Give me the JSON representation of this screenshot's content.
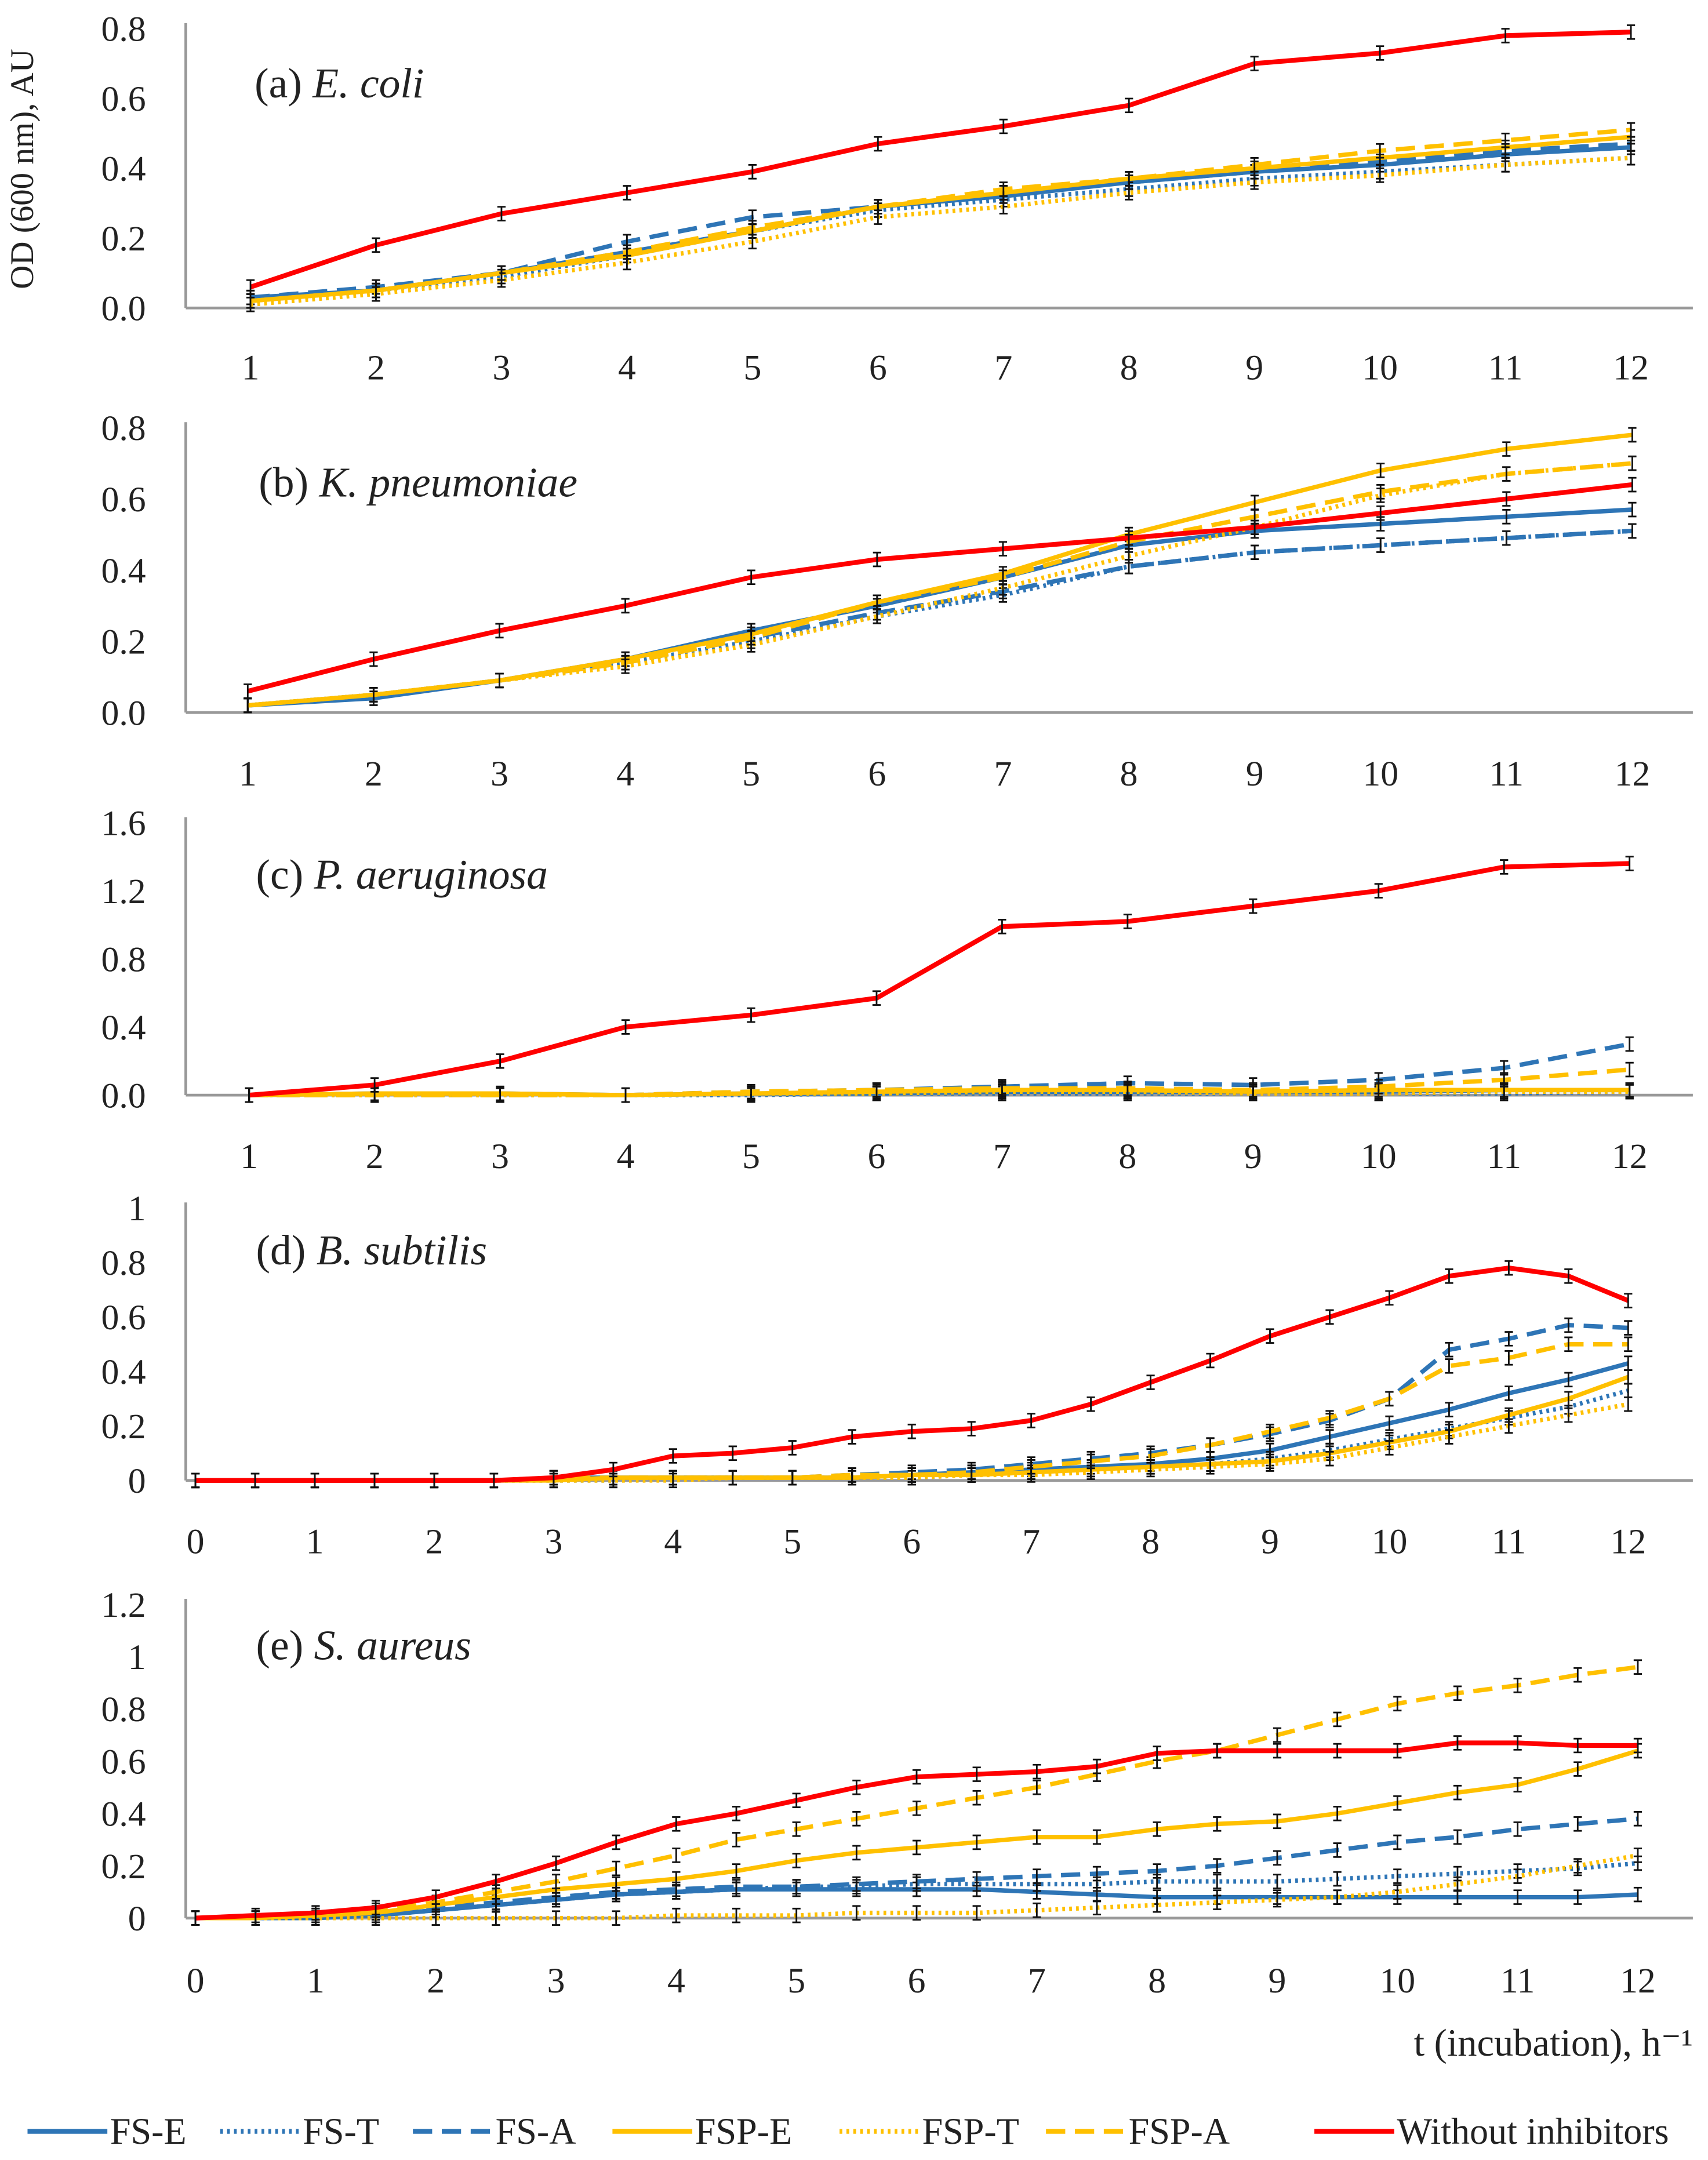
{
  "chart_data": {
    "type": "line",
    "ylabel": "OD (600 nm), AU",
    "xlabel": "t (incubation), h⁻¹",
    "legend_position": "bottom",
    "series_styles": [
      {
        "name": "FS-E",
        "color": "#2E75B6",
        "dash": "solid"
      },
      {
        "name": "FS-T",
        "color": "#2E75B6",
        "dash": "dotted"
      },
      {
        "name": "FS-A",
        "color": "#2E75B6",
        "dash": "dashed"
      },
      {
        "name": "FSP-E",
        "color": "#FFC000",
        "dash": "solid"
      },
      {
        "name": "FSP-T",
        "color": "#FFC000",
        "dash": "dotted"
      },
      {
        "name": "FSP-A",
        "color": "#FFC000",
        "dash": "dashed"
      },
      {
        "name": "Without inhibitors",
        "color": "#FF0000",
        "dash": "solid"
      }
    ],
    "panels": [
      {
        "label": "(a)",
        "species": "E. coli",
        "xlim": [
          1,
          12
        ],
        "ylim": [
          0,
          0.8
        ],
        "xticks": [
          "1",
          "2",
          "3",
          "4",
          "5",
          "6",
          "7",
          "8",
          "9",
          "10",
          "11",
          "12"
        ],
        "yticks": [
          "0.0",
          "0.2",
          "0.4",
          "0.6",
          "0.8"
        ],
        "x": [
          1,
          2,
          3,
          4,
          5,
          6,
          7,
          8,
          9,
          10,
          11,
          12
        ],
        "series": [
          {
            "name": "FS-E",
            "values": [
              0.03,
              0.05,
              0.1,
              0.16,
              0.22,
              0.29,
              0.32,
              0.36,
              0.39,
              0.41,
              0.44,
              0.46
            ]
          },
          {
            "name": "FS-T",
            "values": [
              0.02,
              0.05,
              0.09,
              0.15,
              0.22,
              0.28,
              0.31,
              0.34,
              0.37,
              0.39,
              0.41,
              0.43
            ]
          },
          {
            "name": "FS-A",
            "values": [
              0.03,
              0.06,
              0.1,
              0.19,
              0.26,
              0.29,
              0.33,
              0.36,
              0.39,
              0.42,
              0.45,
              0.47
            ]
          },
          {
            "name": "FSP-E",
            "values": [
              0.02,
              0.05,
              0.1,
              0.15,
              0.22,
              0.29,
              0.33,
              0.37,
              0.4,
              0.43,
              0.46,
              0.49
            ]
          },
          {
            "name": "FSP-T",
            "values": [
              0.01,
              0.04,
              0.08,
              0.13,
              0.19,
              0.26,
              0.29,
              0.33,
              0.36,
              0.38,
              0.41,
              0.43
            ]
          },
          {
            "name": "FSP-A",
            "values": [
              0.02,
              0.05,
              0.1,
              0.16,
              0.23,
              0.29,
              0.34,
              0.37,
              0.41,
              0.45,
              0.48,
              0.51
            ]
          },
          {
            "name": "Without inhibitors",
            "values": [
              0.06,
              0.18,
              0.27,
              0.33,
              0.39,
              0.47,
              0.52,
              0.58,
              0.7,
              0.73,
              0.78,
              0.79
            ]
          }
        ]
      },
      {
        "label": "(b)",
        "species": "K. pneumoniae",
        "xlim": [
          1,
          12
        ],
        "ylim": [
          0,
          0.8
        ],
        "xticks": [
          "1",
          "2",
          "3",
          "4",
          "5",
          "6",
          "7",
          "8",
          "9",
          "10",
          "11",
          "12"
        ],
        "yticks": [
          "0.0",
          "0.2",
          "0.4",
          "0.6",
          "0.8"
        ],
        "x": [
          1,
          2,
          3,
          4,
          5,
          6,
          7,
          8,
          9,
          10,
          11,
          12
        ],
        "series": [
          {
            "name": "FS-E",
            "values": [
              0.02,
              0.04,
              0.09,
              0.15,
              0.23,
              0.3,
              0.38,
              0.47,
              0.51,
              0.53,
              0.55,
              0.57
            ]
          },
          {
            "name": "FS-T",
            "values": [
              0.02,
              0.05,
              0.09,
              0.14,
              0.2,
              0.27,
              0.33,
              0.41,
              0.45,
              0.47,
              0.49,
              0.51
            ]
          },
          {
            "name": "FS-A",
            "values": [
              0.02,
              0.05,
              0.09,
              0.14,
              0.21,
              0.28,
              0.34,
              0.41,
              0.45,
              0.47,
              0.49,
              0.51
            ]
          },
          {
            "name": "FSP-E",
            "values": [
              0.02,
              0.05,
              0.09,
              0.15,
              0.22,
              0.31,
              0.39,
              0.5,
              0.59,
              0.68,
              0.74,
              0.78
            ]
          },
          {
            "name": "FSP-T",
            "values": [
              0.02,
              0.05,
              0.09,
              0.13,
              0.19,
              0.27,
              0.35,
              0.44,
              0.52,
              0.61,
              0.67,
              0.7
            ]
          },
          {
            "name": "FSP-A",
            "values": [
              0.02,
              0.05,
              0.09,
              0.14,
              0.21,
              0.31,
              0.38,
              0.48,
              0.55,
              0.62,
              0.67,
              0.7
            ]
          },
          {
            "name": "Without inhibitors",
            "values": [
              0.06,
              0.15,
              0.23,
              0.3,
              0.38,
              0.43,
              0.46,
              0.49,
              0.52,
              0.56,
              0.6,
              0.64
            ]
          }
        ]
      },
      {
        "label": "(c)",
        "species": "P. aeruginosa",
        "xlim": [
          1,
          12
        ],
        "ylim": [
          0,
          1.6
        ],
        "xticks": [
          "1",
          "2",
          "3",
          "4",
          "5",
          "6",
          "7",
          "8",
          "9",
          "10",
          "11",
          "12"
        ],
        "yticks": [
          "0.0",
          "0.4",
          "0.8",
          "1.2",
          "1.6"
        ],
        "x": [
          1,
          2,
          3,
          4,
          5,
          6,
          7,
          8,
          9,
          10,
          11,
          12
        ],
        "series": [
          {
            "name": "FS-E",
            "values": [
              0,
              0.01,
              0.01,
              0,
              0.01,
              0.01,
              0.02,
              0.02,
              0.02,
              0.02,
              0.03,
              0.03
            ]
          },
          {
            "name": "FS-T",
            "values": [
              0,
              0,
              0,
              0,
              0,
              0.01,
              0.01,
              0.01,
              0.01,
              0.01,
              0.01,
              0.02
            ]
          },
          {
            "name": "FS-A",
            "values": [
              0,
              0,
              0,
              0,
              0.02,
              0.03,
              0.05,
              0.07,
              0.06,
              0.09,
              0.16,
              0.3
            ]
          },
          {
            "name": "FSP-E",
            "values": [
              0,
              0.01,
              0.01,
              0,
              0.01,
              0.02,
              0.03,
              0.03,
              0.02,
              0.03,
              0.03,
              0.03
            ]
          },
          {
            "name": "FSP-T",
            "values": [
              0,
              0,
              0,
              0,
              0.01,
              0.01,
              0.02,
              0.02,
              0.01,
              0.01,
              0.02,
              0.02
            ]
          },
          {
            "name": "FSP-A",
            "values": [
              0,
              0,
              0,
              0,
              0.02,
              0.03,
              0.04,
              0.04,
              0.03,
              0.05,
              0.09,
              0.15
            ]
          },
          {
            "name": "Without inhibitors",
            "values": [
              0.0,
              0.06,
              0.2,
              0.4,
              0.47,
              0.57,
              0.99,
              1.02,
              1.11,
              1.2,
              1.34,
              1.36
            ]
          }
        ]
      },
      {
        "label": "(d)",
        "species": "B. subtilis",
        "xlim": [
          0,
          12
        ],
        "ylim": [
          0,
          1
        ],
        "xticks": [
          "0",
          "1",
          "2",
          "3",
          "4",
          "5",
          "6",
          "7",
          "8",
          "9",
          "10",
          "11",
          "12"
        ],
        "yticks": [
          "0",
          "0.2",
          "0.4",
          "0.6",
          "0.8",
          "1"
        ],
        "x": [
          0,
          0.5,
          1,
          1.5,
          2,
          2.5,
          3,
          3.5,
          4,
          4.5,
          5,
          5.5,
          6,
          6.5,
          7,
          7.5,
          8,
          8.5,
          9,
          9.5,
          10,
          10.5,
          11,
          11.5,
          12
        ],
        "series": [
          {
            "name": "FS-E",
            "values": [
              0,
              0,
              0,
              0,
              0,
              0,
              0.01,
              0.01,
              0.01,
              0.01,
              0.01,
              0.01,
              0.02,
              0.03,
              0.04,
              0.05,
              0.06,
              0.08,
              0.11,
              0.16,
              0.21,
              0.26,
              0.32,
              0.37,
              0.43
            ]
          },
          {
            "name": "FS-T",
            "values": [
              0,
              0,
              0,
              0,
              0,
              0,
              0,
              0,
              0.01,
              0.01,
              0.01,
              0.01,
              0.01,
              0.02,
              0.03,
              0.04,
              0.05,
              0.06,
              0.08,
              0.11,
              0.15,
              0.19,
              0.23,
              0.27,
              0.33
            ]
          },
          {
            "name": "FS-A",
            "values": [
              0,
              0,
              0,
              0,
              0,
              0,
              0.01,
              0.01,
              0.01,
              0.01,
              0.01,
              0.02,
              0.03,
              0.04,
              0.06,
              0.08,
              0.1,
              0.13,
              0.17,
              0.22,
              0.3,
              0.48,
              0.52,
              0.57,
              0.56
            ]
          },
          {
            "name": "FSP-E",
            "values": [
              0,
              0,
              0,
              0,
              0,
              0,
              0,
              0.01,
              0.01,
              0.01,
              0.01,
              0.01,
              0.02,
              0.02,
              0.03,
              0.04,
              0.05,
              0.06,
              0.07,
              0.1,
              0.14,
              0.18,
              0.24,
              0.3,
              0.38
            ]
          },
          {
            "name": "FSP-T",
            "values": [
              0,
              0,
              0,
              0,
              0,
              0,
              0,
              0,
              0,
              0.01,
              0.01,
              0.01,
              0.01,
              0.02,
              0.02,
              0.03,
              0.04,
              0.05,
              0.06,
              0.08,
              0.12,
              0.16,
              0.2,
              0.24,
              0.28
            ]
          },
          {
            "name": "FSP-A",
            "values": [
              0,
              0,
              0,
              0,
              0,
              0,
              0.01,
              0.01,
              0.01,
              0.01,
              0.01,
              0.02,
              0.02,
              0.03,
              0.05,
              0.07,
              0.09,
              0.13,
              0.18,
              0.23,
              0.3,
              0.42,
              0.45,
              0.5,
              0.5
            ]
          },
          {
            "name": "Without inhibitors",
            "values": [
              0,
              0,
              0,
              0,
              0,
              0,
              0.01,
              0.04,
              0.09,
              0.1,
              0.12,
              0.16,
              0.18,
              0.19,
              0.22,
              0.28,
              0.36,
              0.44,
              0.53,
              0.6,
              0.67,
              0.75,
              0.78,
              0.75,
              0.66
            ]
          }
        ]
      },
      {
        "label": "(e)",
        "species": "S. aureus",
        "xlim": [
          0,
          12
        ],
        "ylim": [
          0,
          1.2
        ],
        "xticks": [
          "0",
          "1",
          "2",
          "3",
          "4",
          "5",
          "6",
          "7",
          "8",
          "9",
          "10",
          "11",
          "12"
        ],
        "yticks": [
          "0",
          "0.2",
          "0.4",
          "0.6",
          "0.8",
          "1",
          "1.2"
        ],
        "x": [
          0,
          0.5,
          1,
          1.5,
          2,
          2.5,
          3,
          3.5,
          4,
          4.5,
          5,
          5.5,
          6,
          6.5,
          7,
          7.5,
          8,
          8.5,
          9,
          9.5,
          10,
          10.5,
          11,
          11.5,
          12
        ],
        "series": [
          {
            "name": "FS-E",
            "values": [
              0,
              0,
              0,
              0.01,
              0.03,
              0.05,
              0.07,
              0.09,
              0.1,
              0.11,
              0.11,
              0.11,
              0.11,
              0.11,
              0.1,
              0.09,
              0.08,
              0.08,
              0.08,
              0.08,
              0.08,
              0.08,
              0.08,
              0.08,
              0.09
            ]
          },
          {
            "name": "FS-T",
            "values": [
              0,
              0,
              0,
              0.01,
              0.03,
              0.05,
              0.07,
              0.09,
              0.1,
              0.11,
              0.12,
              0.12,
              0.13,
              0.13,
              0.13,
              0.13,
              0.14,
              0.14,
              0.14,
              0.15,
              0.16,
              0.17,
              0.18,
              0.19,
              0.21
            ]
          },
          {
            "name": "FS-A",
            "values": [
              0,
              0,
              0,
              0.02,
              0.04,
              0.06,
              0.08,
              0.1,
              0.11,
              0.12,
              0.12,
              0.13,
              0.14,
              0.15,
              0.16,
              0.17,
              0.18,
              0.2,
              0.23,
              0.26,
              0.29,
              0.31,
              0.34,
              0.36,
              0.38
            ]
          },
          {
            "name": "FSP-E",
            "values": [
              0,
              0,
              0.01,
              0.02,
              0.05,
              0.08,
              0.11,
              0.13,
              0.15,
              0.18,
              0.22,
              0.25,
              0.27,
              0.29,
              0.31,
              0.31,
              0.34,
              0.36,
              0.37,
              0.4,
              0.44,
              0.48,
              0.51,
              0.57,
              0.64
            ]
          },
          {
            "name": "FSP-T",
            "values": [
              0,
              0,
              0,
              0,
              0,
              0,
              0,
              0,
              0.01,
              0.01,
              0.01,
              0.02,
              0.02,
              0.02,
              0.03,
              0.04,
              0.05,
              0.06,
              0.07,
              0.08,
              0.1,
              0.13,
              0.16,
              0.2,
              0.24
            ]
          },
          {
            "name": "FSP-A",
            "values": [
              0,
              0,
              0.01,
              0.03,
              0.06,
              0.1,
              0.14,
              0.19,
              0.24,
              0.3,
              0.34,
              0.38,
              0.42,
              0.46,
              0.5,
              0.55,
              0.6,
              0.64,
              0.7,
              0.76,
              0.82,
              0.86,
              0.89,
              0.93,
              0.96
            ]
          },
          {
            "name": "Without inhibitors",
            "values": [
              0,
              0.01,
              0.02,
              0.04,
              0.08,
              0.14,
              0.21,
              0.29,
              0.36,
              0.4,
              0.45,
              0.5,
              0.54,
              0.55,
              0.56,
              0.58,
              0.63,
              0.64,
              0.64,
              0.64,
              0.64,
              0.67,
              0.67,
              0.66,
              0.66
            ]
          }
        ]
      }
    ]
  }
}
